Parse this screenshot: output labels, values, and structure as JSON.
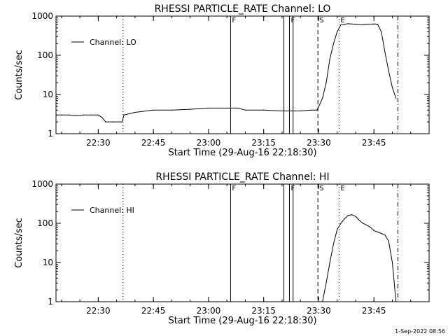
{
  "footer": {
    "timestamp": "1-Sep-2022 08:56"
  },
  "chart_data": [
    {
      "type": "line",
      "title": "RHESSI PARTICLE_RATE Channel: LO",
      "xlabel": "Start Time (29-Aug-16 22:18:30)",
      "ylabel": "Counts/sec",
      "xlim": [
        "22:18:30",
        "24:00:00"
      ],
      "ylim": [
        1,
        1000
      ],
      "yscale": "log",
      "grid": false,
      "legend_position": "upper-left",
      "x_ticks": [
        "22:30",
        "22:45",
        "23:00",
        "23:15",
        "23:30",
        "23:45"
      ],
      "y_ticks": [
        "1",
        "10",
        "100",
        "1000"
      ],
      "series": [
        {
          "name": "Channel: LO",
          "x": [
            "22:18:30",
            "22:20:00",
            "22:22:00",
            "22:24:00",
            "22:26:00",
            "22:28:00",
            "22:30:00",
            "22:31:00",
            "22:32:00",
            "22:34:00",
            "22:36:00",
            "22:36:30",
            "22:37:00",
            "22:40:00",
            "22:45:00",
            "22:50:00",
            "22:55:00",
            "23:00:00",
            "23:05:00",
            "23:08:00",
            "23:10:00",
            "23:15:00",
            "23:20:00",
            "23:25:00",
            "23:28:00",
            "23:29:30",
            "23:30:00",
            "23:31:00",
            "23:32:00",
            "23:33:00",
            "23:34:00",
            "23:35:00",
            "23:36:00",
            "23:37:00",
            "23:38:00",
            "23:40:00",
            "23:42:00",
            "23:43:00",
            "23:45:00",
            "23:46:00",
            "23:47:00",
            "23:48:00",
            "23:49:00",
            "23:50:00",
            "23:51:00"
          ],
          "y": [
            3,
            3,
            3,
            2.9,
            3,
            3,
            3,
            2.6,
            2,
            2,
            2,
            2,
            3,
            3.5,
            4,
            4,
            4.2,
            4.5,
            4.5,
            4.5,
            4,
            4,
            3.8,
            3.8,
            4,
            4,
            5,
            8,
            20,
            80,
            200,
            400,
            600,
            620,
            640,
            620,
            600,
            620,
            630,
            620,
            400,
            120,
            40,
            15,
            8
          ]
        }
      ],
      "markers": [
        {
          "label": "",
          "x": "22:36:45",
          "style": "dotted"
        },
        {
          "label": "F",
          "x": "23:06:00",
          "style": "solid"
        },
        {
          "label": "",
          "x": "23:20:30",
          "style": "solid"
        },
        {
          "label": "F",
          "x": "23:22:00",
          "style": "solid"
        },
        {
          "label": "",
          "x": "23:23:00",
          "style": "solid"
        },
        {
          "label": "S",
          "x": "23:29:45",
          "style": "dashed"
        },
        {
          "label": "E",
          "x": "23:35:30",
          "style": "dotted"
        },
        {
          "label": "",
          "x": "23:51:30",
          "style": "dashdot"
        }
      ]
    },
    {
      "type": "line",
      "title": "RHESSI PARTICLE_RATE Channel: HI",
      "xlabel": "Start Time (29-Aug-16 22:18:30)",
      "ylabel": "Counts/sec",
      "xlim": [
        "22:18:30",
        "24:00:00"
      ],
      "ylim": [
        1,
        1000
      ],
      "yscale": "log",
      "grid": false,
      "legend_position": "upper-left",
      "x_ticks": [
        "22:30",
        "22:45",
        "23:00",
        "23:15",
        "23:30",
        "23:45"
      ],
      "y_ticks": [
        "1",
        "10",
        "100",
        "1000"
      ],
      "series": [
        {
          "name": "Channel: HI",
          "x": [
            "23:31:00",
            "23:32:00",
            "23:33:00",
            "23:34:00",
            "23:35:00",
            "23:36:00",
            "23:37:00",
            "23:38:00",
            "23:39:00",
            "23:40:00",
            "23:41:00",
            "23:42:00",
            "23:43:00",
            "23:44:00",
            "23:45:00",
            "23:46:00",
            "23:47:00",
            "23:48:00",
            "23:49:00",
            "23:50:00",
            "23:51:00"
          ],
          "y": [
            1,
            3,
            10,
            30,
            70,
            100,
            130,
            160,
            165,
            150,
            120,
            100,
            90,
            80,
            65,
            60,
            55,
            50,
            35,
            10,
            1
          ]
        }
      ],
      "markers": [
        {
          "label": "",
          "x": "22:36:45",
          "style": "dotted"
        },
        {
          "label": "F",
          "x": "23:06:00",
          "style": "solid"
        },
        {
          "label": "",
          "x": "23:20:30",
          "style": "solid"
        },
        {
          "label": "F",
          "x": "23:22:00",
          "style": "solid"
        },
        {
          "label": "",
          "x": "23:23:00",
          "style": "solid"
        },
        {
          "label": "S",
          "x": "23:29:45",
          "style": "dashed"
        },
        {
          "label": "E",
          "x": "23:35:30",
          "style": "dotted"
        },
        {
          "label": "",
          "x": "23:51:30",
          "style": "dashdot"
        }
      ]
    }
  ]
}
